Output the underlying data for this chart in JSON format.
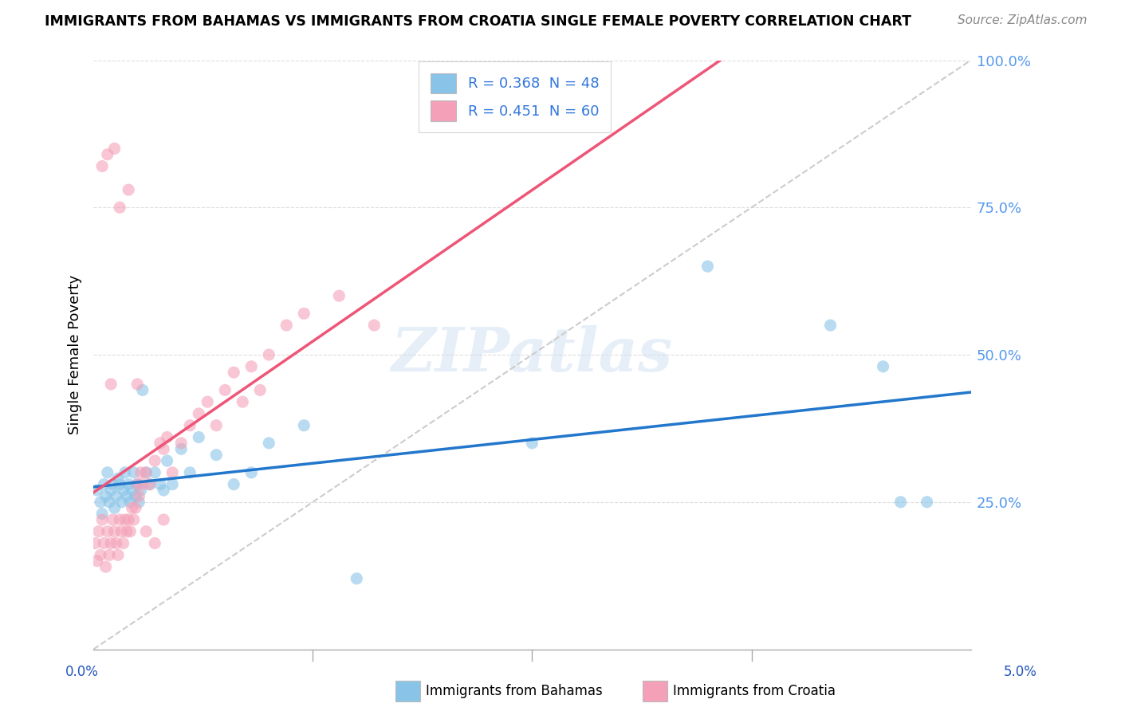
{
  "title": "IMMIGRANTS FROM BAHAMAS VS IMMIGRANTS FROM CROATIA SINGLE FEMALE POVERTY CORRELATION CHART",
  "source": "Source: ZipAtlas.com",
  "ylabel": "Single Female Poverty",
  "x_min": 0.0,
  "x_max": 5.0,
  "y_min": 0.0,
  "y_max": 100.0,
  "y_ticks": [
    0,
    25,
    50,
    75,
    100
  ],
  "y_tick_labels": [
    "",
    "25.0%",
    "50.0%",
    "75.0%",
    "100.0%"
  ],
  "legend_label_bahamas": "R = 0.368  N = 48",
  "legend_label_croatia": "R = 0.451  N = 60",
  "color_bahamas": "#89C4E8",
  "color_croatia": "#F4A0B8",
  "color_bahamas_line": "#2277CC",
  "color_croatia_line": "#EE5577",
  "color_ref_line": "#CCCCCC",
  "watermark": "ZIPatlas",
  "bahamas_x": [
    0.02,
    0.04,
    0.05,
    0.06,
    0.07,
    0.08,
    0.09,
    0.1,
    0.11,
    0.12,
    0.13,
    0.14,
    0.15,
    0.16,
    0.17,
    0.18,
    0.19,
    0.2,
    0.21,
    0.22,
    0.23,
    0.24,
    0.25,
    0.26,
    0.27,
    0.28,
    0.3,
    0.32,
    0.35,
    0.38,
    0.4,
    0.42,
    0.45,
    0.5,
    0.55,
    0.6,
    0.7,
    0.8,
    0.9,
    1.0,
    1.2,
    1.5,
    2.5,
    3.5,
    4.2,
    4.5,
    4.6,
    4.75
  ],
  "bahamas_y": [
    27,
    25,
    23,
    28,
    26,
    30,
    25,
    27,
    28,
    24,
    26,
    29,
    28,
    25,
    27,
    30,
    26,
    28,
    25,
    27,
    30,
    26,
    28,
    25,
    27,
    44,
    30,
    28,
    30,
    28,
    27,
    32,
    28,
    34,
    30,
    36,
    33,
    28,
    30,
    35,
    38,
    12,
    35,
    65,
    55,
    48,
    25,
    25
  ],
  "croatia_x": [
    0.01,
    0.02,
    0.03,
    0.04,
    0.05,
    0.06,
    0.07,
    0.08,
    0.09,
    0.1,
    0.11,
    0.12,
    0.13,
    0.14,
    0.15,
    0.16,
    0.17,
    0.18,
    0.19,
    0.2,
    0.21,
    0.22,
    0.23,
    0.24,
    0.25,
    0.26,
    0.27,
    0.28,
    0.3,
    0.32,
    0.35,
    0.38,
    0.4,
    0.42,
    0.45,
    0.5,
    0.55,
    0.6,
    0.65,
    0.7,
    0.75,
    0.8,
    0.85,
    0.9,
    0.95,
    1.0,
    1.1,
    1.2,
    1.4,
    1.6,
    0.05,
    0.08,
    0.12,
    0.15,
    0.2,
    0.1,
    0.25,
    0.3,
    0.35,
    0.4
  ],
  "croatia_y": [
    18,
    15,
    20,
    16,
    22,
    18,
    14,
    20,
    16,
    18,
    22,
    20,
    18,
    16,
    22,
    20,
    18,
    22,
    20,
    22,
    20,
    24,
    22,
    24,
    28,
    26,
    30,
    28,
    30,
    28,
    32,
    35,
    34,
    36,
    30,
    35,
    38,
    40,
    42,
    38,
    44,
    47,
    42,
    48,
    44,
    50,
    55,
    57,
    60,
    55,
    82,
    84,
    85,
    75,
    78,
    45,
    45,
    20,
    18,
    22
  ]
}
